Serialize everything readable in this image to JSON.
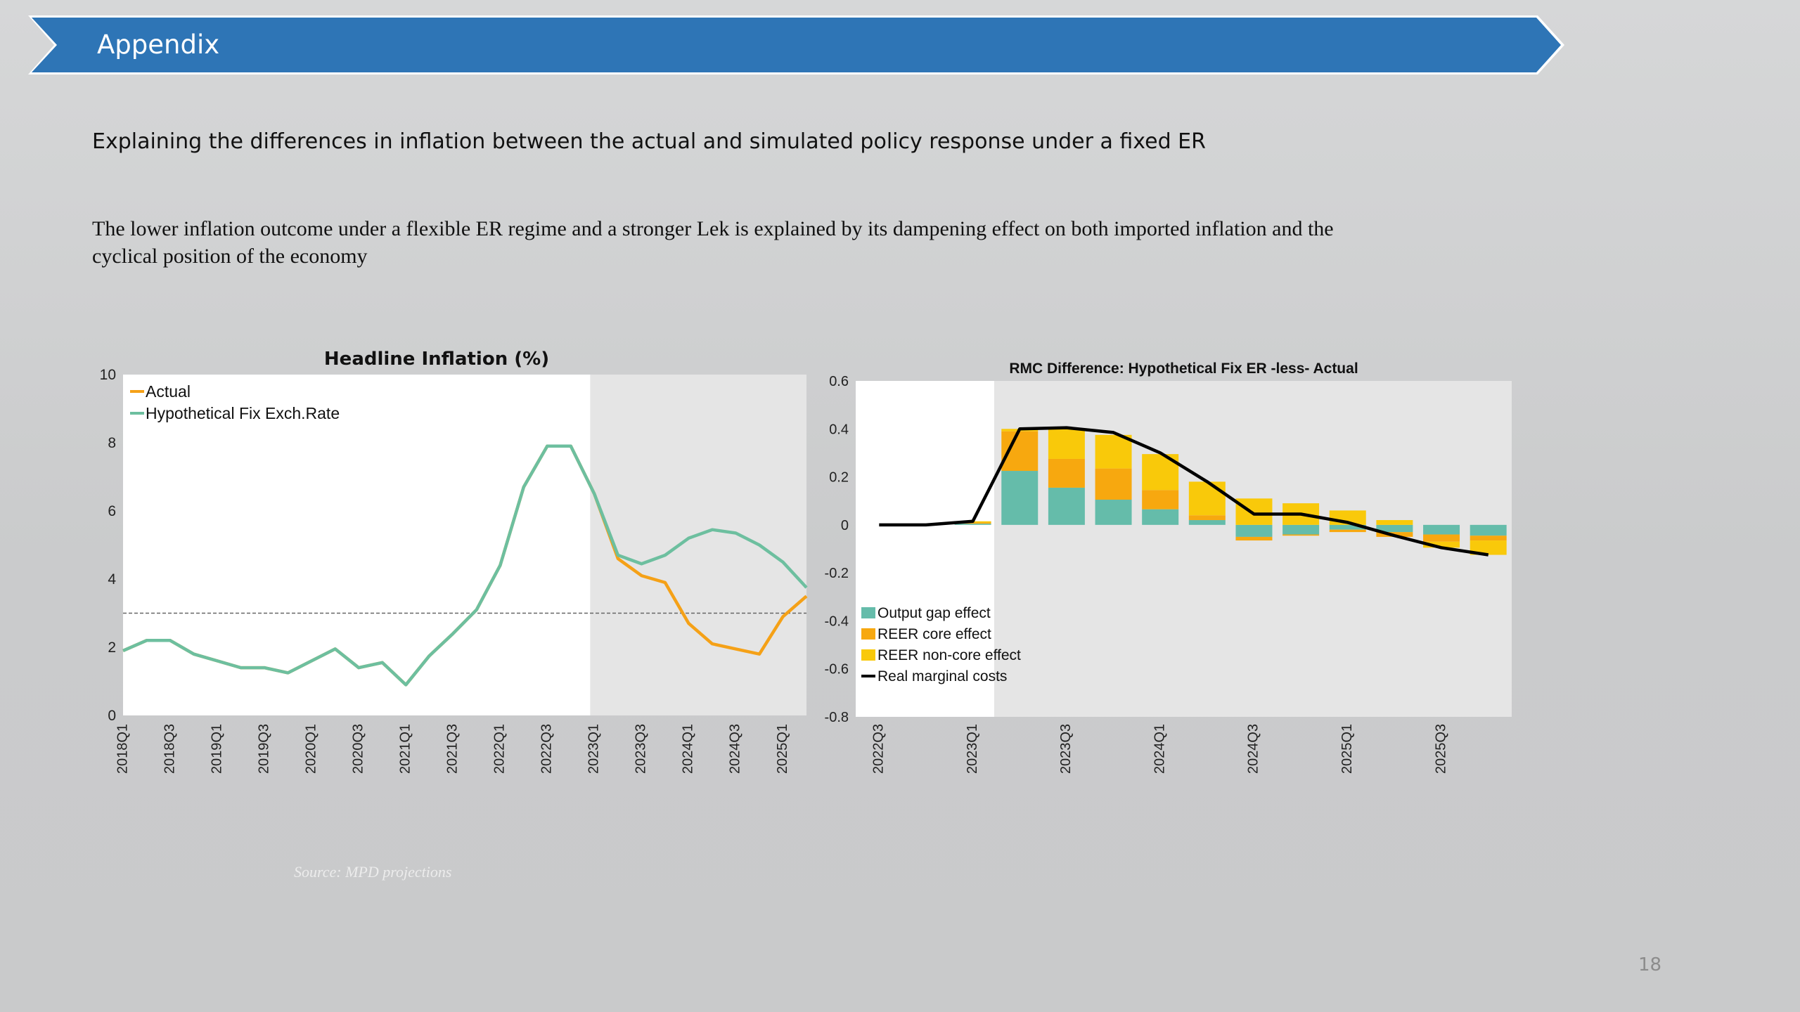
{
  "banner": {
    "title": "Appendix"
  },
  "subtitle": "Explaining the differences in inflation between the actual and simulated policy response under a fixed ER",
  "body_text": "The lower inflation outcome under a flexible ER regime and a stronger Lek is explained by its dampening effect on both imported inflation and the cyclical position of the economy",
  "source": "Source: MPD projections",
  "page_number": "18",
  "colors": {
    "banner": "#2e75b6",
    "actual": "#f5a117",
    "hypothetical": "#6dbf9f",
    "output_gap": "#65bcaa",
    "reer_core": "#f7a80f",
    "reer_noncore": "#f9c90a",
    "rmc_line": "#000000",
    "shade": "#e5e5e5"
  },
  "chart_data": [
    {
      "type": "line",
      "title": "Headline Inflation (%)",
      "xlabel": "",
      "ylabel": "",
      "ylim": [
        0,
        10
      ],
      "yticks": [
        "0",
        "2",
        "4",
        "6",
        "8",
        "10"
      ],
      "x": [
        "2018Q1",
        "2018Q2",
        "2018Q3",
        "2018Q4",
        "2019Q1",
        "2019Q2",
        "2019Q3",
        "2019Q4",
        "2020Q1",
        "2020Q2",
        "2020Q3",
        "2020Q4",
        "2021Q1",
        "2021Q2",
        "2021Q3",
        "2021Q4",
        "2022Q1",
        "2022Q2",
        "2022Q3",
        "2022Q4",
        "2023Q1",
        "2023Q2",
        "2023Q3",
        "2023Q4",
        "2024Q1",
        "2024Q2",
        "2024Q3",
        "2024Q4",
        "2025Q1",
        "2025Q2"
      ],
      "x_tick_labels": [
        "2018Q1",
        "2018Q3",
        "2019Q1",
        "2019Q3",
        "2020Q1",
        "2020Q3",
        "2021Q1",
        "2021Q3",
        "2022Q1",
        "2022Q3",
        "2023Q1",
        "2023Q3",
        "2024Q1",
        "2024Q3",
        "2025Q1"
      ],
      "series": [
        {
          "name": "Actual",
          "values": [
            1.9,
            2.2,
            2.2,
            1.8,
            1.6,
            1.4,
            1.4,
            1.25,
            1.6,
            1.95,
            1.4,
            1.55,
            0.9,
            1.75,
            2.4,
            3.1,
            4.4,
            6.7,
            7.9,
            7.9,
            6.5,
            4.6,
            4.1,
            3.9,
            2.7,
            2.1,
            1.95,
            1.8,
            2.9,
            3.5
          ]
        },
        {
          "name": "Hypothetical Fix Exch.Rate",
          "values": [
            1.9,
            2.2,
            2.2,
            1.8,
            1.6,
            1.4,
            1.4,
            1.25,
            1.6,
            1.95,
            1.4,
            1.55,
            0.9,
            1.75,
            2.4,
            3.1,
            4.4,
            6.7,
            7.9,
            7.9,
            6.5,
            4.7,
            4.45,
            4.7,
            5.2,
            5.45,
            5.35,
            5.0,
            4.5,
            3.75
          ]
        }
      ],
      "reference_line": 3,
      "forecast_shading_start": "2023Q1",
      "legend": "top-left",
      "grid": false
    },
    {
      "type": "bar",
      "stacked": true,
      "title": "RMC Difference:  Hypothetical Fix ER -less- Actual",
      "xlabel": "",
      "ylabel": "",
      "ylim": [
        -0.8,
        0.6
      ],
      "yticks": [
        "-0.8",
        "-0.6",
        "-0.4",
        "-0.2",
        "0",
        "0.2",
        "0.4",
        "0.6"
      ],
      "x": [
        "2022Q3",
        "2022Q4",
        "2023Q1",
        "2023Q2",
        "2023Q3",
        "2023Q4",
        "2024Q1",
        "2024Q2",
        "2024Q3",
        "2024Q4",
        "2025Q1",
        "2025Q2",
        "2025Q3",
        "2025Q4"
      ],
      "x_tick_labels": [
        "2022Q3",
        "2023Q1",
        "2023Q3",
        "2024Q1",
        "2024Q3",
        "2025Q1",
        "2025Q3"
      ],
      "series": [
        {
          "name": "Output gap effect",
          "kind": "bar",
          "values": [
            0,
            0,
            0.005,
            0.225,
            0.155,
            0.105,
            0.065,
            0.02,
            -0.05,
            -0.04,
            -0.02,
            -0.03,
            -0.04,
            -0.045
          ]
        },
        {
          "name": "REER core effect",
          "kind": "bar",
          "values": [
            0,
            0,
            0.005,
            0.165,
            0.12,
            0.13,
            0.08,
            0.02,
            -0.015,
            -0.005,
            -0.01,
            -0.02,
            -0.03,
            -0.02
          ]
        },
        {
          "name": "REER non-core effect",
          "kind": "bar",
          "values": [
            0,
            0,
            0.005,
            0.01,
            0.125,
            0.14,
            0.15,
            0.14,
            0.11,
            0.09,
            0.06,
            0.02,
            -0.025,
            -0.06
          ]
        },
        {
          "name": "Real marginal costs",
          "kind": "line",
          "values": [
            0,
            0,
            0.015,
            0.4,
            0.405,
            0.385,
            0.3,
            0.18,
            0.045,
            0.045,
            0.01,
            -0.045,
            -0.095,
            -0.125
          ]
        }
      ],
      "forecast_shading_start": "2023Q2",
      "legend": "bottom-left",
      "grid": false
    }
  ]
}
